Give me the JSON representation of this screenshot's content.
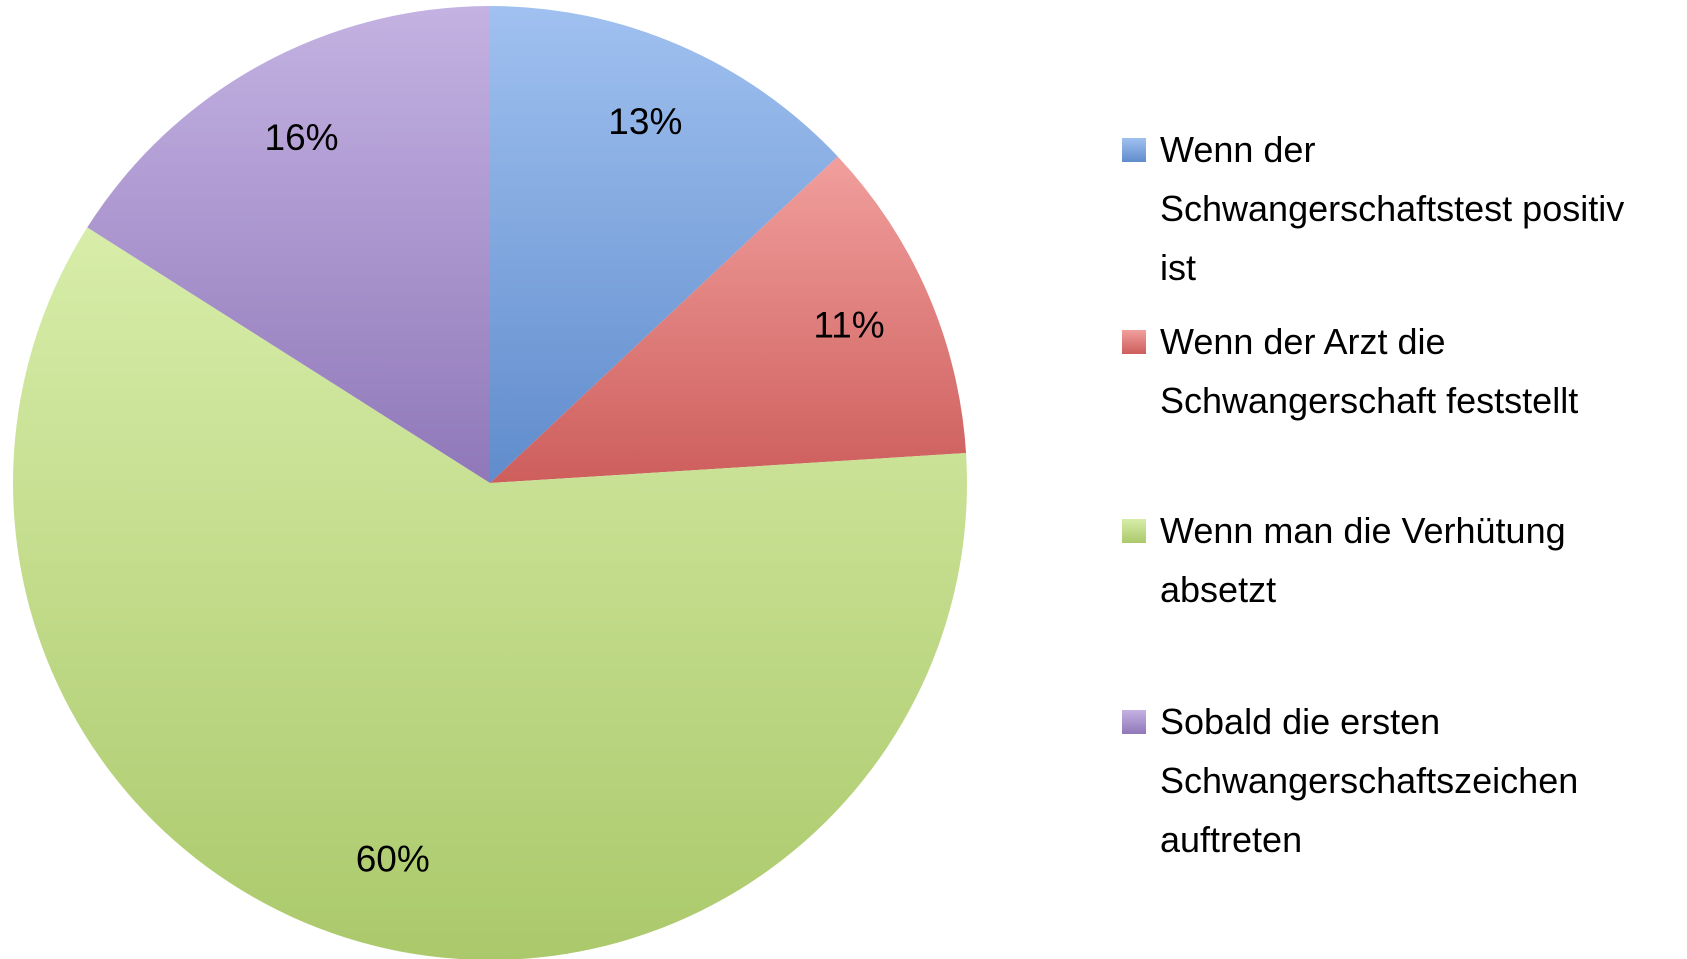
{
  "chart_data": {
    "type": "pie",
    "categories": [
      "Wenn der Schwangerschaftstest positiv ist",
      "Wenn der Arzt die Schwangerschaft feststellt",
      "Wenn man die Verhütung absetzt",
      "Sobald die ersten Schwangerschaftszeichen auftreten"
    ],
    "values": [
      13,
      11,
      60,
      16
    ],
    "value_labels": [
      "13%",
      "11%",
      "60%",
      "16%"
    ],
    "colors": [
      "#6d9fe8",
      "#e96b68",
      "#c2e47a",
      "#a488d2"
    ],
    "legend": "right"
  }
}
